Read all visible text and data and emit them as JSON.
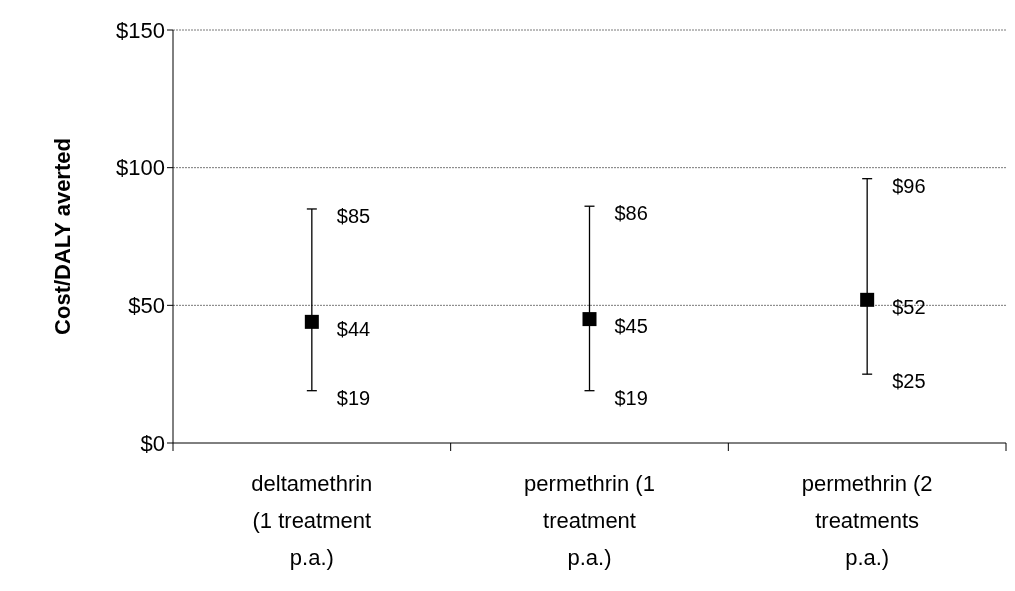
{
  "chart_data": {
    "type": "scatter",
    "ylabel": "Cost/DALY averted",
    "categories": [
      "deltamethrin (1 treatment p.a.)",
      "permethrin (1 treatment p.a.)",
      "permethrin (2 treatments p.a.)"
    ],
    "values": [
      44,
      45,
      52
    ],
    "errors": [
      [
        19,
        85
      ],
      [
        19,
        86
      ],
      [
        25,
        96
      ]
    ],
    "value_labels": [
      "$44",
      "$45",
      "$52"
    ],
    "color": "#000000",
    "marker": "square",
    "ylim": [
      0,
      150
    ],
    "yticks": [
      {
        "value": 0,
        "label": "$0"
      },
      {
        "value": 50,
        "label": "$50"
      },
      {
        "value": 100,
        "label": "$100"
      },
      {
        "value": 150,
        "label": "$150"
      }
    ],
    "grid": "y",
    "annotations": [
      {
        "text": "$85",
        "x": "deltamethrin (1 treatment p.a.)",
        "y": 85
      },
      {
        "text": "$19",
        "x": "deltamethrin (1 treatment p.a.)",
        "y": 19
      },
      {
        "text": "$86",
        "x": "permethrin (1 treatment p.a.)",
        "y": 86
      },
      {
        "text": "$19",
        "x": "permethrin (1 treatment p.a.)",
        "y": 19
      },
      {
        "text": "$96",
        "x": "permethrin (2 treatments p.a.)",
        "y": 96
      },
      {
        "text": "$25",
        "x": "permethrin (2 treatments p.a.)",
        "y": 25
      }
    ]
  }
}
